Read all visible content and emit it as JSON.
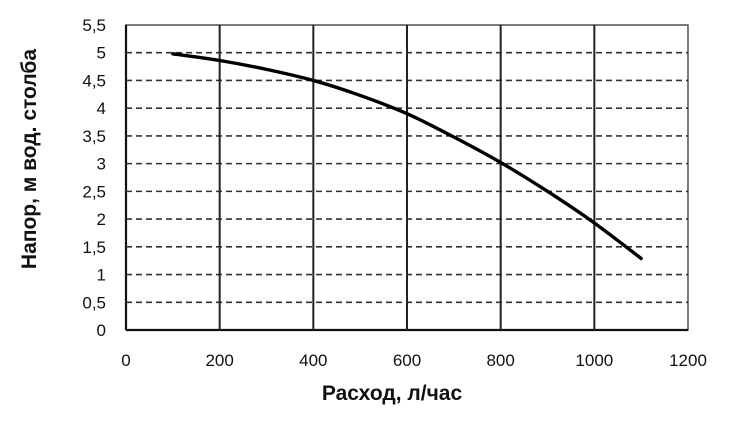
{
  "chart_data": {
    "type": "line",
    "title": "",
    "xlabel": "Расход, л/час",
    "ylabel": "Напор, м вод. столба",
    "xlim": [
      0,
      1200
    ],
    "ylim": [
      0,
      5.5
    ],
    "x_ticks": [
      0,
      200,
      400,
      600,
      800,
      1000,
      1200
    ],
    "x_tick_labels": [
      "0",
      "200",
      "400",
      "600",
      "800",
      "1000",
      "1200"
    ],
    "y_ticks": [
      0,
      0.5,
      1,
      1.5,
      2,
      2.5,
      3,
      3.5,
      4,
      4.5,
      5,
      5.5
    ],
    "y_tick_labels": [
      "0",
      "0,5",
      "1",
      "1,5",
      "2",
      "2,5",
      "3",
      "3,5",
      "4",
      "4,5",
      "5",
      "5,5"
    ],
    "grid": {
      "vertical": "solid",
      "horizontal": "dashed"
    },
    "legend": "none",
    "series": [
      {
        "color": "#000000",
        "x": [
          100,
          200,
          300,
          400,
          500,
          600,
          700,
          800,
          900,
          1000,
          1100
        ],
        "y": [
          4.98,
          4.86,
          4.7,
          4.5,
          4.23,
          3.9,
          3.48,
          3.02,
          2.5,
          1.93,
          1.29
        ]
      }
    ]
  }
}
